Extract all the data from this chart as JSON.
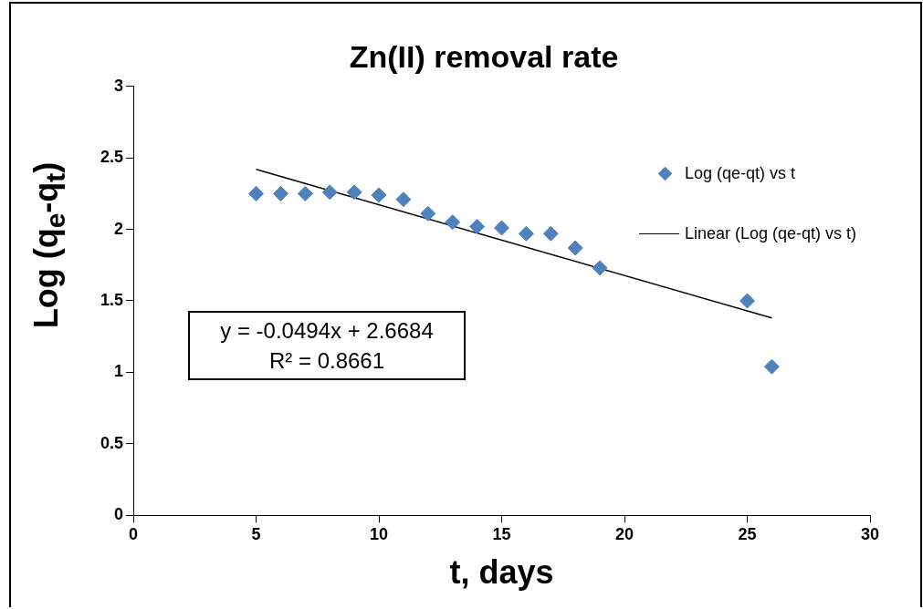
{
  "chart_data": {
    "type": "scatter",
    "title": "Zn(II) removal rate",
    "xlabel": "t, days",
    "ylabel": "Log (q$_{e}$-q$_{t}$)",
    "x": [
      5,
      6,
      7,
      8,
      9,
      10,
      11,
      12,
      13,
      14,
      15,
      16,
      17,
      18,
      19,
      25,
      26
    ],
    "series": [
      {
        "name": "Log (qe-qt) vs t",
        "type": "scatter",
        "color": "#4f81bd",
        "marker": "diamond",
        "values": [
          2.25,
          2.25,
          2.25,
          2.26,
          2.26,
          2.24,
          2.21,
          2.11,
          2.05,
          2.02,
          2.01,
          1.97,
          1.97,
          1.87,
          1.73,
          1.5,
          1.04
        ]
      },
      {
        "name": "Linear (Log (qe-qt) vs t)",
        "type": "line",
        "color": "#000000",
        "marker": "none",
        "x": [
          5,
          26
        ],
        "values": [
          2.42,
          1.38
        ]
      }
    ],
    "xlim": [
      0,
      30
    ],
    "xticks": [
      0,
      5,
      10,
      15,
      20,
      25,
      30
    ],
    "ylim": [
      0,
      3
    ],
    "yticks": [
      0,
      0.5,
      1,
      1.5,
      2,
      2.5,
      3
    ],
    "grid": false,
    "legend": "right",
    "annotations": [
      "y = -0.0494x + 2.6684",
      "R² = 0.8661"
    ]
  }
}
